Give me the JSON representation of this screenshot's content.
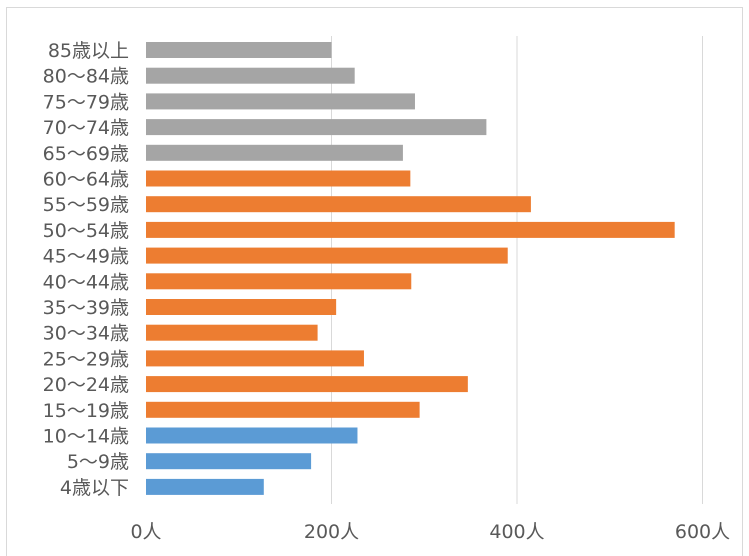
{
  "chart_data": {
    "type": "bar",
    "orientation": "horizontal",
    "title": "",
    "xlabel": "",
    "ylabel": "",
    "xlim": [
      0,
      600
    ],
    "x_tick_values": [
      0,
      200,
      400,
      600
    ],
    "x_tick_labels": [
      "0人",
      "200人",
      "400人",
      "600人"
    ],
    "grid": "vertical",
    "legend": "none",
    "categories": [
      "85歳以上",
      "80～84歳",
      "75～79歳",
      "70～74歳",
      "65～69歳",
      "60～64歳",
      "55～59歳",
      "50～54歳",
      "45～49歳",
      "40～44歳",
      "35～39歳",
      "30～34歳",
      "25～29歳",
      "20～24歳",
      "15～19歳",
      "10～14歳",
      "5～9歳",
      "4歳以下"
    ],
    "values": [
      200,
      225,
      290,
      367,
      277,
      285,
      415,
      570,
      390,
      286,
      205,
      185,
      235,
      347,
      295,
      228,
      178,
      127
    ],
    "bar_colors": [
      "#a5a5a5",
      "#a5a5a5",
      "#a5a5a5",
      "#a5a5a5",
      "#a5a5a5",
      "#ed7d31",
      "#ed7d31",
      "#ed7d31",
      "#ed7d31",
      "#ed7d31",
      "#ed7d31",
      "#ed7d31",
      "#ed7d31",
      "#ed7d31",
      "#ed7d31",
      "#5b9bd5",
      "#5b9bd5",
      "#5b9bd5"
    ],
    "gridline_color": "#d9d9d9",
    "label_color": "#595959"
  }
}
